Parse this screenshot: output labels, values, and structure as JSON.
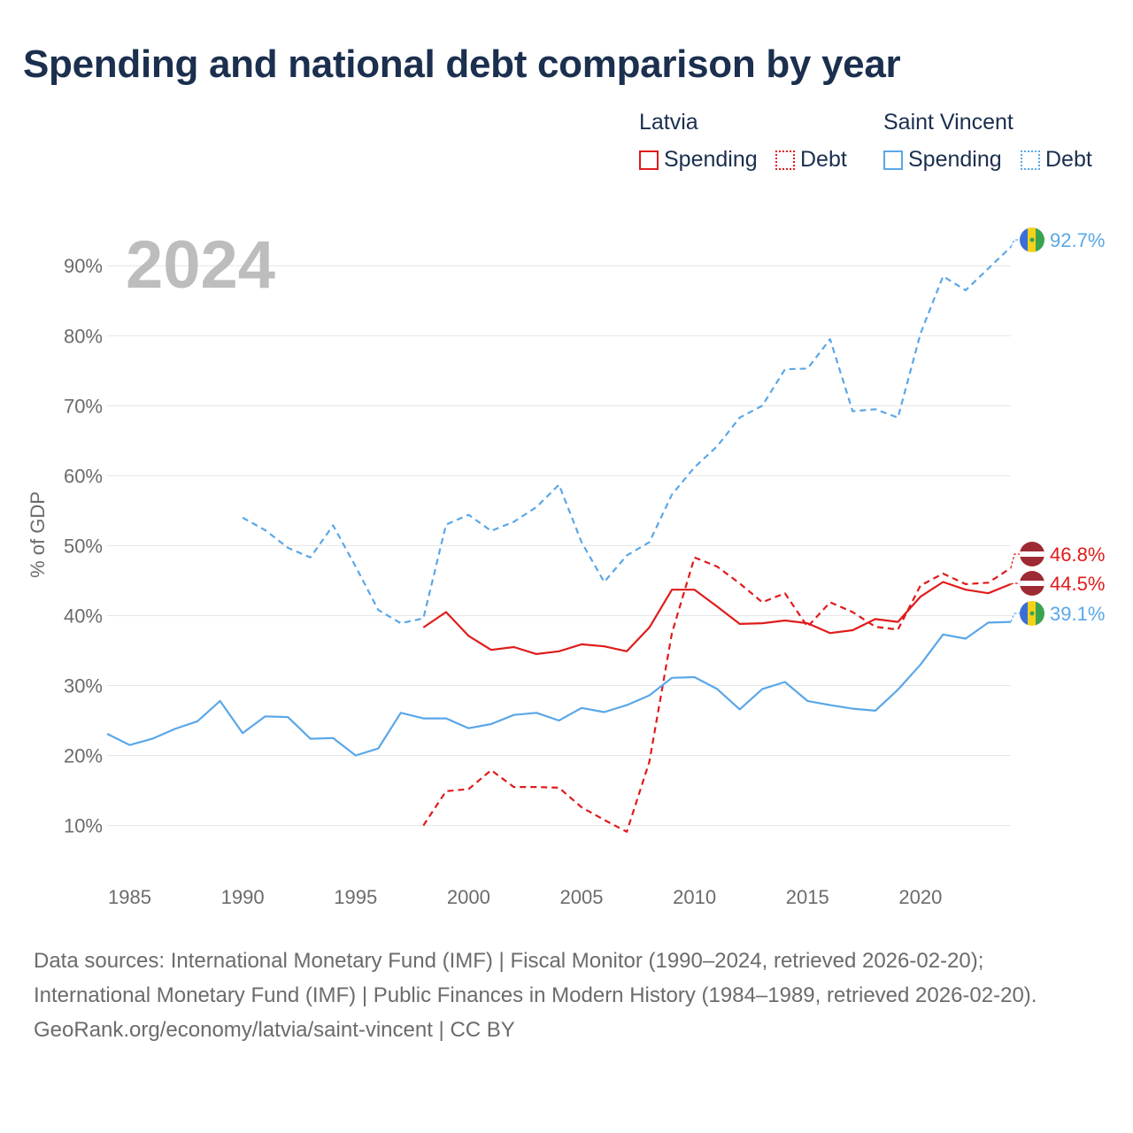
{
  "title": "Spending and national debt comparison by year",
  "legend": {
    "groups": [
      {
        "name": "Latvia",
        "items": [
          {
            "label": "Spending",
            "style": "solid",
            "color": "#e01b1b"
          },
          {
            "label": "Debt",
            "style": "dotted",
            "color": "#e01b1b"
          }
        ]
      },
      {
        "name": "Saint Vincent",
        "items": [
          {
            "label": "Spending",
            "style": "solid",
            "color": "#5aa7e8"
          },
          {
            "label": "Debt",
            "style": "dotted",
            "color": "#5aa7e8"
          }
        ]
      }
    ]
  },
  "year_stamp": "2024",
  "footer": {
    "sources": "Data sources: International Monetary Fund (IMF) | Fiscal Monitor (1990–2024, retrieved 2026-02-20); International Monetary Fund (IMF) | Public Finances in Modern History (1984–1989, retrieved 2026-02-20).",
    "credit": "GeoRank.org/economy/latvia/saint-vincent | CC BY"
  },
  "chart_data": {
    "type": "line",
    "title": "Spending and national debt comparison by year",
    "xlabel": "",
    "ylabel": "% of GDP",
    "xlim": [
      1984,
      2024
    ],
    "ylim": [
      4,
      98
    ],
    "x_ticks": [
      1985,
      1990,
      1995,
      2000,
      2005,
      2010,
      2015,
      2020
    ],
    "y_ticks": [
      10,
      20,
      30,
      40,
      50,
      60,
      70,
      80,
      90
    ],
    "y_tick_labels": [
      "10%",
      "20%",
      "30%",
      "40%",
      "50%",
      "60%",
      "70%",
      "80%",
      "90%"
    ],
    "grid": true,
    "series": [
      {
        "name": "Latvia Spending",
        "country": "Latvia",
        "metric": "Spending",
        "color": "#e01b1b",
        "dash": "solid",
        "end_label": "44.5%",
        "points": [
          [
            1998,
            38.3
          ],
          [
            1999,
            40.5
          ],
          [
            2000,
            37.1
          ],
          [
            2001,
            35.1
          ],
          [
            2002,
            35.5
          ],
          [
            2003,
            34.5
          ],
          [
            2004,
            34.9
          ],
          [
            2005,
            35.9
          ],
          [
            2006,
            35.6
          ],
          [
            2007,
            34.9
          ],
          [
            2008,
            38.3
          ],
          [
            2009,
            43.7
          ],
          [
            2010,
            43.7
          ],
          [
            2011,
            41.3
          ],
          [
            2012,
            38.8
          ],
          [
            2013,
            38.9
          ],
          [
            2014,
            39.3
          ],
          [
            2015,
            38.9
          ],
          [
            2016,
            37.5
          ],
          [
            2017,
            37.9
          ],
          [
            2018,
            39.5
          ],
          [
            2019,
            39.1
          ],
          [
            2020,
            42.7
          ],
          [
            2021,
            44.8
          ],
          [
            2022,
            43.7
          ],
          [
            2023,
            43.2
          ],
          [
            2024,
            44.5
          ]
        ]
      },
      {
        "name": "Latvia Debt",
        "country": "Latvia",
        "metric": "Debt",
        "color": "#e01b1b",
        "dash": "dashed",
        "end_label": "46.8%",
        "points": [
          [
            1998,
            10.0
          ],
          [
            1999,
            14.9
          ],
          [
            2000,
            15.2
          ],
          [
            2001,
            17.9
          ],
          [
            2002,
            15.5
          ],
          [
            2003,
            15.5
          ],
          [
            2004,
            15.4
          ],
          [
            2005,
            12.6
          ],
          [
            2006,
            10.8
          ],
          [
            2007,
            9.1
          ],
          [
            2008,
            19.1
          ],
          [
            2009,
            37.5
          ],
          [
            2010,
            48.3
          ],
          [
            2011,
            47.0
          ],
          [
            2012,
            44.6
          ],
          [
            2013,
            41.9
          ],
          [
            2014,
            43.2
          ],
          [
            2015,
            38.4
          ],
          [
            2016,
            41.9
          ],
          [
            2017,
            40.5
          ],
          [
            2018,
            38.4
          ],
          [
            2019,
            38.0
          ],
          [
            2020,
            44.3
          ],
          [
            2021,
            46.0
          ],
          [
            2022,
            44.5
          ],
          [
            2023,
            44.7
          ],
          [
            2024,
            46.8
          ]
        ]
      },
      {
        "name": "Saint Vincent Spending",
        "country": "Saint Vincent",
        "metric": "Spending",
        "color": "#5aa7e8",
        "dash": "solid",
        "end_label": "39.1%",
        "points": [
          [
            1984,
            23.1
          ],
          [
            1985,
            21.5
          ],
          [
            1986,
            22.4
          ],
          [
            1987,
            23.8
          ],
          [
            1988,
            24.9
          ],
          [
            1989,
            27.8
          ],
          [
            1990,
            23.2
          ],
          [
            1991,
            25.6
          ],
          [
            1992,
            25.5
          ],
          [
            1993,
            22.4
          ],
          [
            1994,
            22.5
          ],
          [
            1995,
            20.0
          ],
          [
            1996,
            21.0
          ],
          [
            1997,
            26.1
          ],
          [
            1998,
            25.3
          ],
          [
            1999,
            25.3
          ],
          [
            2000,
            23.9
          ],
          [
            2001,
            24.5
          ],
          [
            2002,
            25.8
          ],
          [
            2003,
            26.1
          ],
          [
            2004,
            25.0
          ],
          [
            2005,
            26.8
          ],
          [
            2006,
            26.2
          ],
          [
            2007,
            27.2
          ],
          [
            2008,
            28.6
          ],
          [
            2009,
            31.1
          ],
          [
            2010,
            31.2
          ],
          [
            2011,
            29.5
          ],
          [
            2012,
            26.6
          ],
          [
            2013,
            29.5
          ],
          [
            2014,
            30.5
          ],
          [
            2015,
            27.8
          ],
          [
            2016,
            27.2
          ],
          [
            2017,
            26.7
          ],
          [
            2018,
            26.4
          ],
          [
            2019,
            29.4
          ],
          [
            2020,
            33.0
          ],
          [
            2021,
            37.3
          ],
          [
            2022,
            36.7
          ],
          [
            2023,
            39.0
          ],
          [
            2024,
            39.1
          ]
        ]
      },
      {
        "name": "Saint Vincent Debt",
        "country": "Saint Vincent",
        "metric": "Debt",
        "color": "#5aa7e8",
        "dash": "dashed",
        "end_label": "92.7%",
        "points": [
          [
            1990,
            54.0
          ],
          [
            1991,
            52.2
          ],
          [
            1992,
            49.7
          ],
          [
            1993,
            48.3
          ],
          [
            1994,
            52.9
          ],
          [
            1995,
            47.0
          ],
          [
            1996,
            40.8
          ],
          [
            1997,
            38.9
          ],
          [
            1998,
            39.6
          ],
          [
            1999,
            53.0
          ],
          [
            2000,
            54.4
          ],
          [
            2001,
            52.1
          ],
          [
            2002,
            53.4
          ],
          [
            2003,
            55.5
          ],
          [
            2004,
            58.7
          ],
          [
            2005,
            50.5
          ],
          [
            2006,
            44.8
          ],
          [
            2007,
            48.6
          ],
          [
            2008,
            50.5
          ],
          [
            2009,
            57.3
          ],
          [
            2010,
            61.2
          ],
          [
            2011,
            64.2
          ],
          [
            2012,
            68.3
          ],
          [
            2013,
            70.0
          ],
          [
            2014,
            75.2
          ],
          [
            2015,
            75.3
          ],
          [
            2016,
            79.5
          ],
          [
            2017,
            69.2
          ],
          [
            2018,
            69.5
          ],
          [
            2019,
            68.3
          ],
          [
            2020,
            80.3
          ],
          [
            2021,
            88.5
          ],
          [
            2022,
            86.5
          ],
          [
            2023,
            89.6
          ],
          [
            2024,
            92.7
          ]
        ]
      }
    ]
  }
}
